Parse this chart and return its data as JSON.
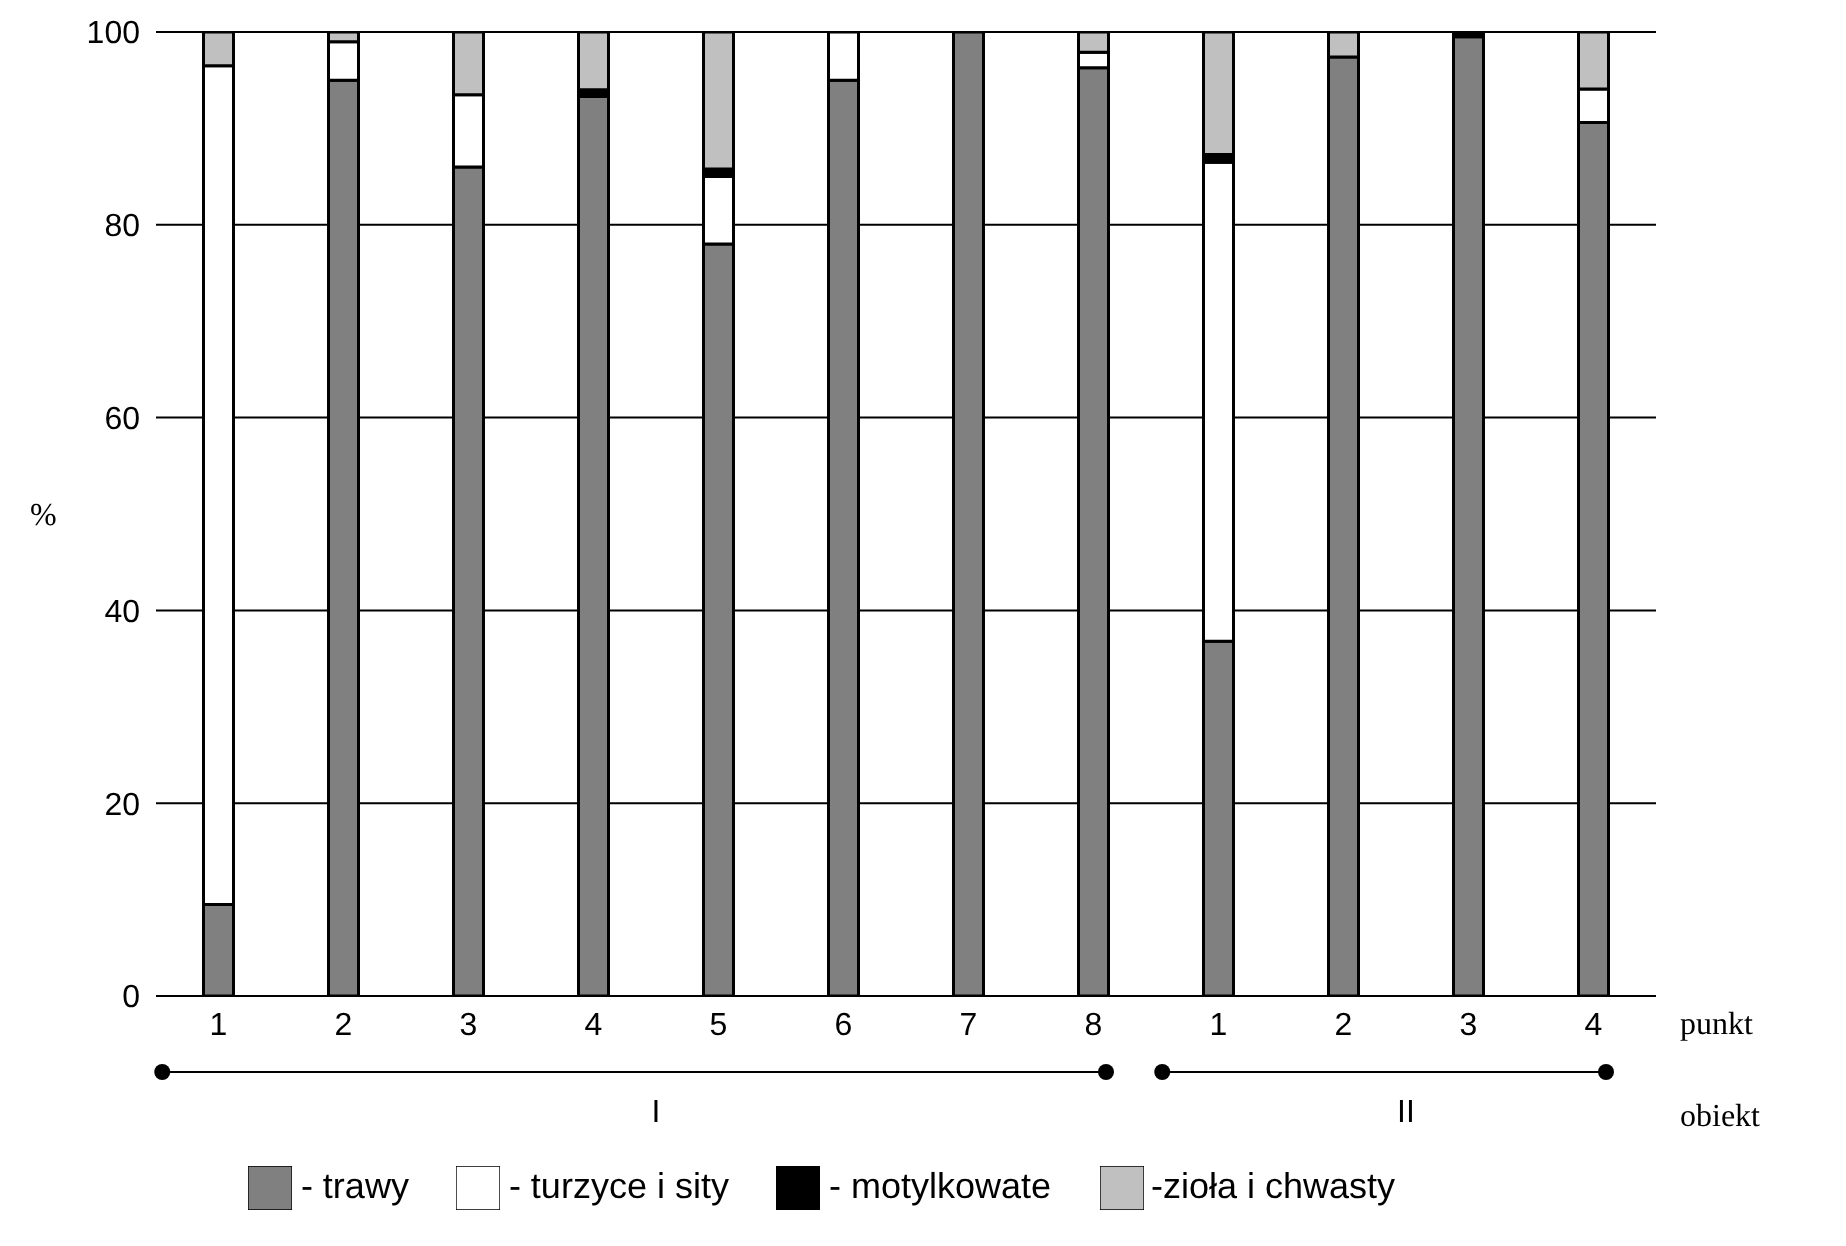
{
  "chart_data": {
    "type": "bar",
    "stacked": true,
    "ylabel": "%",
    "xlabel": "punkt",
    "categories": [
      "1",
      "2",
      "3",
      "4",
      "5",
      "6",
      "7",
      "8",
      "1",
      "2",
      "3",
      "4"
    ],
    "series": [
      {
        "name": "- trawy",
        "color": "#808080",
        "values": [
          9.5,
          95,
          86,
          93.3,
          78,
          95,
          100,
          96.3,
          36.8,
          97.4,
          99.5,
          90.6
        ]
      },
      {
        "name": "- turzyce i sity",
        "color": "#ffffff",
        "values": [
          87,
          4,
          7.5,
          0,
          7,
          5,
          0,
          1.6,
          49.7,
          0,
          0,
          3.5
        ]
      },
      {
        "name": "- motylkowate",
        "color": "#000000",
        "values": [
          0,
          0,
          0,
          0.7,
          0.8,
          0,
          0,
          0,
          0.8,
          0,
          0.5,
          0
        ]
      },
      {
        "name": "-zioła i chwasty",
        "color": "#c0c0c0",
        "values": [
          3.5,
          1,
          6.5,
          6,
          14.2,
          0,
          0,
          2.1,
          12.7,
          2.6,
          0,
          5.9
        ]
      }
    ],
    "ylim": [
      0,
      100
    ],
    "yticks": [
      0,
      20,
      40,
      60,
      80,
      100
    ],
    "grid": "y",
    "legend": "bottom",
    "annotations": [
      "obiekt",
      "I",
      "II"
    ]
  }
}
